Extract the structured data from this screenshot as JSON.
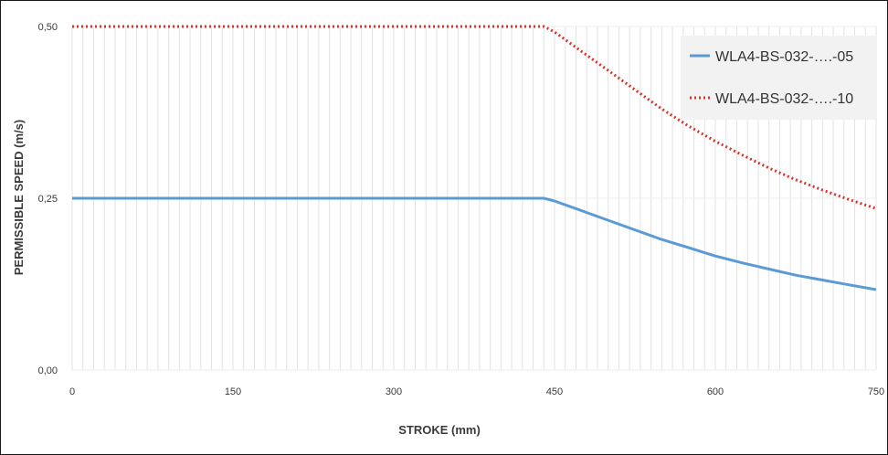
{
  "chart_data": {
    "type": "line",
    "title": "",
    "xlabel": "STROKE (mm)",
    "ylabel": "PERMISSIBLE SPEED (m/s)",
    "xlim": [
      0,
      750
    ],
    "ylim": [
      0,
      0.5
    ],
    "x_ticks": [
      "0",
      "150",
      "300",
      "450",
      "600",
      "750"
    ],
    "y_ticks": [
      "0,00",
      "0,25",
      "0,50"
    ],
    "x_tick_values": [
      0,
      150,
      300,
      450,
      600,
      750
    ],
    "y_tick_values": [
      0,
      0.25,
      0.5
    ],
    "grid": "vertical",
    "legend_position": "top-right",
    "series": [
      {
        "name": "WLA4-BS-032-….-05",
        "color": "#5b9bd5",
        "style": "solid",
        "x": [
          0,
          150,
          300,
          440,
          450,
          475,
          500,
          525,
          550,
          575,
          600,
          625,
          650,
          675,
          700,
          725,
          750
        ],
        "y": [
          0.25,
          0.25,
          0.25,
          0.25,
          0.246,
          0.232,
          0.218,
          0.204,
          0.19,
          0.178,
          0.166,
          0.156,
          0.147,
          0.138,
          0.131,
          0.124,
          0.117
        ]
      },
      {
        "name": "WLA4-BS-032-….-10",
        "color": "#d9342b",
        "style": "dotted",
        "x": [
          0,
          150,
          300,
          440,
          450,
          475,
          500,
          525,
          550,
          575,
          600,
          625,
          650,
          675,
          700,
          725,
          750
        ],
        "y": [
          0.5,
          0.5,
          0.5,
          0.5,
          0.492,
          0.464,
          0.436,
          0.408,
          0.38,
          0.355,
          0.333,
          0.313,
          0.294,
          0.277,
          0.262,
          0.248,
          0.235
        ]
      }
    ]
  }
}
